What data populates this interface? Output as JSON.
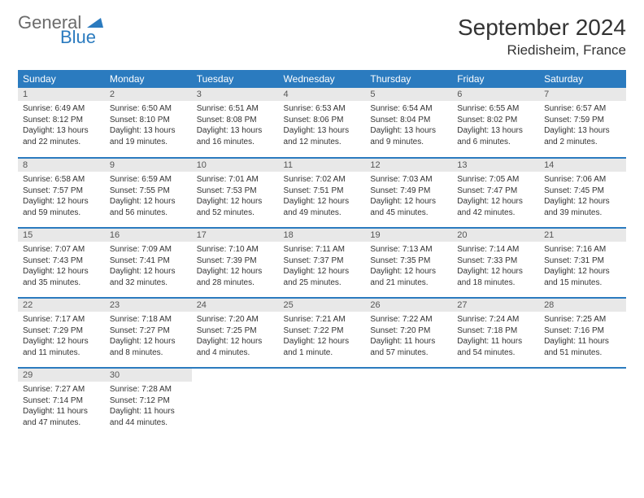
{
  "logo": {
    "general": "General",
    "blue": "Blue"
  },
  "title": "September 2024",
  "location": "Riedisheim, France",
  "colors": {
    "header_bg": "#2b7bbf",
    "header_text": "#ffffff",
    "daynum_bg": "#e8e8e8",
    "body_text": "#333333",
    "logo_gray": "#6b6b6b",
    "logo_blue": "#2b7bbf"
  },
  "typography": {
    "title_fontsize": 28,
    "location_fontsize": 17,
    "dow_fontsize": 12,
    "daynum_fontsize": 11,
    "body_fontsize": 10
  },
  "days_of_week": [
    "Sunday",
    "Monday",
    "Tuesday",
    "Wednesday",
    "Thursday",
    "Friday",
    "Saturday"
  ],
  "weeks": [
    [
      {
        "n": "1",
        "sunrise": "Sunrise: 6:49 AM",
        "sunset": "Sunset: 8:12 PM",
        "daylight": "Daylight: 13 hours and 22 minutes."
      },
      {
        "n": "2",
        "sunrise": "Sunrise: 6:50 AM",
        "sunset": "Sunset: 8:10 PM",
        "daylight": "Daylight: 13 hours and 19 minutes."
      },
      {
        "n": "3",
        "sunrise": "Sunrise: 6:51 AM",
        "sunset": "Sunset: 8:08 PM",
        "daylight": "Daylight: 13 hours and 16 minutes."
      },
      {
        "n": "4",
        "sunrise": "Sunrise: 6:53 AM",
        "sunset": "Sunset: 8:06 PM",
        "daylight": "Daylight: 13 hours and 12 minutes."
      },
      {
        "n": "5",
        "sunrise": "Sunrise: 6:54 AM",
        "sunset": "Sunset: 8:04 PM",
        "daylight": "Daylight: 13 hours and 9 minutes."
      },
      {
        "n": "6",
        "sunrise": "Sunrise: 6:55 AM",
        "sunset": "Sunset: 8:02 PM",
        "daylight": "Daylight: 13 hours and 6 minutes."
      },
      {
        "n": "7",
        "sunrise": "Sunrise: 6:57 AM",
        "sunset": "Sunset: 7:59 PM",
        "daylight": "Daylight: 13 hours and 2 minutes."
      }
    ],
    [
      {
        "n": "8",
        "sunrise": "Sunrise: 6:58 AM",
        "sunset": "Sunset: 7:57 PM",
        "daylight": "Daylight: 12 hours and 59 minutes."
      },
      {
        "n": "9",
        "sunrise": "Sunrise: 6:59 AM",
        "sunset": "Sunset: 7:55 PM",
        "daylight": "Daylight: 12 hours and 56 minutes."
      },
      {
        "n": "10",
        "sunrise": "Sunrise: 7:01 AM",
        "sunset": "Sunset: 7:53 PM",
        "daylight": "Daylight: 12 hours and 52 minutes."
      },
      {
        "n": "11",
        "sunrise": "Sunrise: 7:02 AM",
        "sunset": "Sunset: 7:51 PM",
        "daylight": "Daylight: 12 hours and 49 minutes."
      },
      {
        "n": "12",
        "sunrise": "Sunrise: 7:03 AM",
        "sunset": "Sunset: 7:49 PM",
        "daylight": "Daylight: 12 hours and 45 minutes."
      },
      {
        "n": "13",
        "sunrise": "Sunrise: 7:05 AM",
        "sunset": "Sunset: 7:47 PM",
        "daylight": "Daylight: 12 hours and 42 minutes."
      },
      {
        "n": "14",
        "sunrise": "Sunrise: 7:06 AM",
        "sunset": "Sunset: 7:45 PM",
        "daylight": "Daylight: 12 hours and 39 minutes."
      }
    ],
    [
      {
        "n": "15",
        "sunrise": "Sunrise: 7:07 AM",
        "sunset": "Sunset: 7:43 PM",
        "daylight": "Daylight: 12 hours and 35 minutes."
      },
      {
        "n": "16",
        "sunrise": "Sunrise: 7:09 AM",
        "sunset": "Sunset: 7:41 PM",
        "daylight": "Daylight: 12 hours and 32 minutes."
      },
      {
        "n": "17",
        "sunrise": "Sunrise: 7:10 AM",
        "sunset": "Sunset: 7:39 PM",
        "daylight": "Daylight: 12 hours and 28 minutes."
      },
      {
        "n": "18",
        "sunrise": "Sunrise: 7:11 AM",
        "sunset": "Sunset: 7:37 PM",
        "daylight": "Daylight: 12 hours and 25 minutes."
      },
      {
        "n": "19",
        "sunrise": "Sunrise: 7:13 AM",
        "sunset": "Sunset: 7:35 PM",
        "daylight": "Daylight: 12 hours and 21 minutes."
      },
      {
        "n": "20",
        "sunrise": "Sunrise: 7:14 AM",
        "sunset": "Sunset: 7:33 PM",
        "daylight": "Daylight: 12 hours and 18 minutes."
      },
      {
        "n": "21",
        "sunrise": "Sunrise: 7:16 AM",
        "sunset": "Sunset: 7:31 PM",
        "daylight": "Daylight: 12 hours and 15 minutes."
      }
    ],
    [
      {
        "n": "22",
        "sunrise": "Sunrise: 7:17 AM",
        "sunset": "Sunset: 7:29 PM",
        "daylight": "Daylight: 12 hours and 11 minutes."
      },
      {
        "n": "23",
        "sunrise": "Sunrise: 7:18 AM",
        "sunset": "Sunset: 7:27 PM",
        "daylight": "Daylight: 12 hours and 8 minutes."
      },
      {
        "n": "24",
        "sunrise": "Sunrise: 7:20 AM",
        "sunset": "Sunset: 7:25 PM",
        "daylight": "Daylight: 12 hours and 4 minutes."
      },
      {
        "n": "25",
        "sunrise": "Sunrise: 7:21 AM",
        "sunset": "Sunset: 7:22 PM",
        "daylight": "Daylight: 12 hours and 1 minute."
      },
      {
        "n": "26",
        "sunrise": "Sunrise: 7:22 AM",
        "sunset": "Sunset: 7:20 PM",
        "daylight": "Daylight: 11 hours and 57 minutes."
      },
      {
        "n": "27",
        "sunrise": "Sunrise: 7:24 AM",
        "sunset": "Sunset: 7:18 PM",
        "daylight": "Daylight: 11 hours and 54 minutes."
      },
      {
        "n": "28",
        "sunrise": "Sunrise: 7:25 AM",
        "sunset": "Sunset: 7:16 PM",
        "daylight": "Daylight: 11 hours and 51 minutes."
      }
    ],
    [
      {
        "n": "29",
        "sunrise": "Sunrise: 7:27 AM",
        "sunset": "Sunset: 7:14 PM",
        "daylight": "Daylight: 11 hours and 47 minutes."
      },
      {
        "n": "30",
        "sunrise": "Sunrise: 7:28 AM",
        "sunset": "Sunset: 7:12 PM",
        "daylight": "Daylight: 11 hours and 44 minutes."
      },
      null,
      null,
      null,
      null,
      null
    ]
  ]
}
